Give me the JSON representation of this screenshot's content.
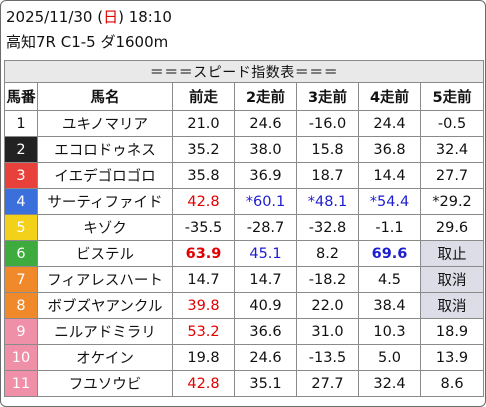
{
  "header": {
    "date_prefix": "2025/11/30 (",
    "weekday": "日",
    "date_suffix": ") 18:10",
    "race": "高知7R C1-5 ダ1600m"
  },
  "table": {
    "title": "＝＝＝スピード指数表＝＝＝",
    "columns": [
      "馬番",
      "馬名",
      "前走",
      "2走前",
      "3走前",
      "4走前",
      "5走前"
    ],
    "rows": [
      {
        "num": "1",
        "name": "ユキノマリア",
        "cells": [
          "21.0",
          "24.6",
          "-16.0",
          "24.4",
          "-0.5"
        ],
        "num_bg": "#ffffff",
        "num_fg": "#111111"
      },
      {
        "num": "2",
        "name": "エコロドゥネス",
        "cells": [
          "35.2",
          "38.0",
          "15.8",
          "36.8",
          "32.4"
        ],
        "num_bg": "#222222",
        "num_fg": "#ffffff"
      },
      {
        "num": "3",
        "name": "イエデゴロゴロ",
        "cells": [
          "35.8",
          "36.9",
          "18.7",
          "14.4",
          "27.7"
        ],
        "num_bg": "#e8413c",
        "num_fg": "#ffffff"
      },
      {
        "num": "4",
        "name": "サーティファイド",
        "cells": [
          "42.8",
          "*60.1",
          "*48.1",
          "*54.4",
          "*29.2"
        ],
        "num_bg": "#3a6fdc",
        "num_fg": "#ffffff"
      },
      {
        "num": "5",
        "name": "キゾク",
        "cells": [
          "-35.5",
          "-28.7",
          "-32.8",
          "-1.1",
          "29.6"
        ],
        "num_bg": "#f3d11a",
        "num_fg": "#ffffff"
      },
      {
        "num": "6",
        "name": "ビステル",
        "cells": [
          "63.9",
          "45.1",
          "8.2",
          "69.6",
          "取止"
        ],
        "num_bg": "#3dab3d",
        "num_fg": "#ffffff"
      },
      {
        "num": "7",
        "name": "フィアレスハート",
        "cells": [
          "14.7",
          "14.7",
          "-18.2",
          "4.5",
          "取消"
        ],
        "num_bg": "#f0892a",
        "num_fg": "#ffffff"
      },
      {
        "num": "8",
        "name": "ボブズヤアンクル",
        "cells": [
          "39.8",
          "40.9",
          "22.0",
          "38.4",
          "取消"
        ],
        "num_bg": "#f0892a",
        "num_fg": "#ffffff"
      },
      {
        "num": "9",
        "name": "ニルアドミラリ",
        "cells": [
          "53.2",
          "36.6",
          "31.0",
          "10.3",
          "18.9"
        ],
        "num_bg": "#ef8fa8",
        "num_fg": "#ffffff"
      },
      {
        "num": "10",
        "name": "オケイン",
        "cells": [
          "19.8",
          "24.6",
          "-13.5",
          "5.0",
          "13.9"
        ],
        "num_bg": "#ef8fa8",
        "num_fg": "#ffffff"
      },
      {
        "num": "11",
        "name": "フユソウビ",
        "cells": [
          "42.8",
          "35.1",
          "27.7",
          "32.4",
          "8.6"
        ],
        "num_bg": "#ef8fa8",
        "num_fg": "#ffffff"
      }
    ],
    "styles": {
      "0": [
        "",
        "",
        "",
        "",
        ""
      ],
      "1": [
        "",
        "",
        "",
        "",
        ""
      ],
      "2": [
        "",
        "",
        "",
        "",
        ""
      ],
      "3": [
        "v-red",
        "v-blue",
        "v-blue",
        "v-blue",
        ""
      ],
      "4": [
        "",
        "",
        "",
        "",
        ""
      ],
      "5": [
        "v-red bold",
        "v-blue",
        "",
        "v-blue bold",
        "grey"
      ],
      "6": [
        "",
        "",
        "",
        "",
        "grey"
      ],
      "7": [
        "v-red",
        "",
        "",
        "",
        "grey"
      ],
      "8": [
        "v-red",
        "",
        "",
        "",
        ""
      ],
      "9": [
        "",
        "",
        "",
        "",
        ""
      ],
      "10": [
        "v-red",
        "",
        "",
        "",
        ""
      ]
    }
  }
}
